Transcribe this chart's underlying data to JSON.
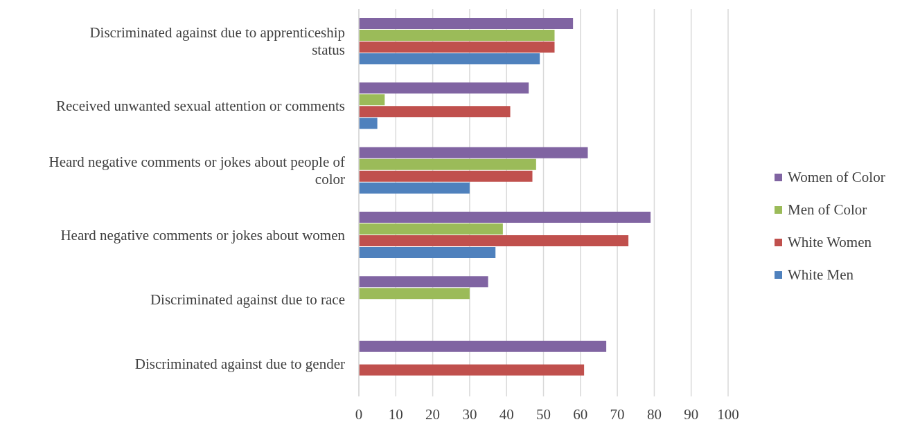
{
  "chart_data": {
    "type": "bar",
    "orientation": "horizontal",
    "categories": [
      "Discriminated against due to apprenticeship status",
      "Received unwanted sexual attention or comments",
      "Heard negative comments or jokes about people of color",
      "Heard negative comments or jokes about women",
      "Discriminated against due to race",
      "Discriminated against due to gender"
    ],
    "series": [
      {
        "name": "White Men",
        "color": "#4f81bd",
        "values": [
          49,
          5,
          30,
          37,
          null,
          null
        ]
      },
      {
        "name": "White Women",
        "color": "#c0504d",
        "values": [
          53,
          41,
          47,
          73,
          null,
          61
        ]
      },
      {
        "name": "Men of Color",
        "color": "#9bbb59",
        "values": [
          53,
          7,
          48,
          39,
          30,
          null
        ]
      },
      {
        "name": "Women of Color",
        "color": "#8064a2",
        "values": [
          58,
          46,
          62,
          79,
          35,
          67
        ]
      }
    ],
    "xlim": [
      0,
      100
    ],
    "xticks": [
      0,
      10,
      20,
      30,
      40,
      50,
      60,
      70,
      80,
      90,
      100
    ],
    "grid": "x",
    "legend": "right"
  }
}
